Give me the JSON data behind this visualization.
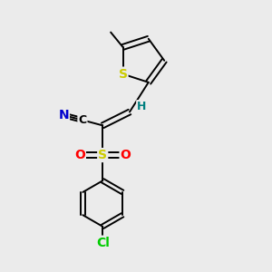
{
  "background_color": "#ebebeb",
  "bond_color": "#000000",
  "atom_colors": {
    "S_thio": "#cccc00",
    "S_sulfonyl": "#cccc00",
    "N": "#0000cd",
    "O": "#ff0000",
    "Cl": "#00cc00",
    "C": "#000000",
    "H": "#008080"
  },
  "figsize": [
    3.0,
    3.0
  ],
  "dpi": 100,
  "lw": 1.4
}
